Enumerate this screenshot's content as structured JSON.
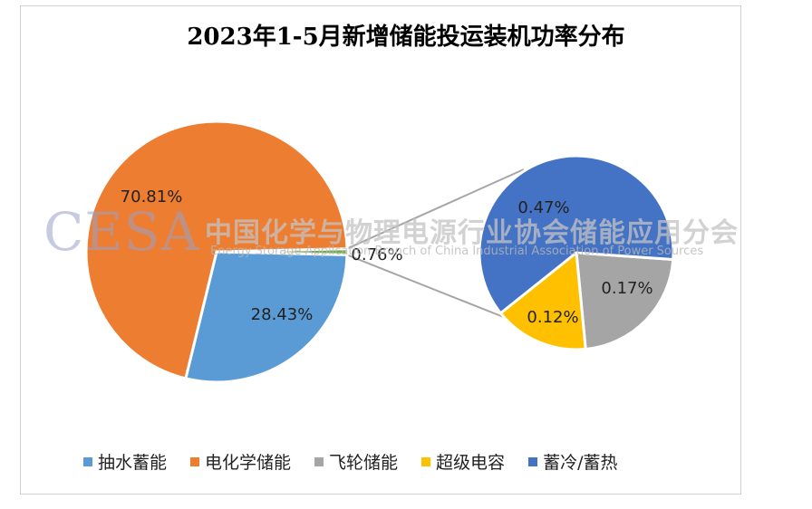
{
  "chart_data": {
    "type": "pie",
    "title": "2023年1-5月新增储能投运装机功率分布",
    "series": [
      {
        "name": "抽水蓄能",
        "value": 28.43,
        "label": "28.43%",
        "color": "#5b9bd5"
      },
      {
        "name": "电化学储能",
        "value": 70.81,
        "label": "70.81%",
        "color": "#ed7d31"
      },
      {
        "name": "飞轮储能",
        "value": 0.17,
        "label": "0.17%",
        "color": "#a5a5a5"
      },
      {
        "name": "超级电容",
        "value": 0.12,
        "label": "0.12%",
        "color": "#ffc000"
      },
      {
        "name": "蓄冷/蓄热",
        "value": 0.47,
        "label": "0.47%",
        "color": "#4472c4"
      }
    ],
    "other_group": {
      "value": 0.76,
      "label": "0.76%",
      "color": "#70ad47"
    },
    "legend_position": "bottom"
  },
  "watermark": {
    "logo": "CESA",
    "org_cn": "中国化学与物理电源行业协会储能应用分会",
    "org_en": "Energy Storage Application Branch of China Industrial Association of Power Sources"
  }
}
